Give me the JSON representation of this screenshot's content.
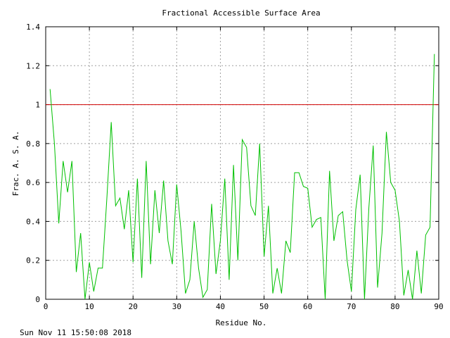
{
  "footer": {
    "timestamp": "Sun Nov 11 15:50:08 2018"
  },
  "chart_data": {
    "type": "line",
    "title": "Fractional Accessible Surface Area",
    "xlabel": "Residue No.",
    "ylabel": "Frac. A. S. A.",
    "xlim": [
      0,
      90
    ],
    "ylim": [
      0,
      1.4
    ],
    "xticks": [
      0,
      10,
      20,
      30,
      40,
      50,
      60,
      70,
      80,
      90
    ],
    "xtick_labels": [
      "0",
      "10",
      "20",
      "30",
      "40",
      "50",
      "60",
      "70",
      "80",
      "90"
    ],
    "yticks": [
      0,
      0.2,
      0.4,
      0.6,
      0.8,
      1,
      1.2,
      1.4
    ],
    "ytick_labels": [
      "0",
      "0.2",
      "0.4",
      "0.6",
      "0.8",
      "1",
      "1.2",
      "1.4"
    ],
    "grid": true,
    "reference_line": {
      "y": 1.0,
      "color": "#d00000"
    },
    "series": [
      {
        "color": "#00c000",
        "x": [
          1,
          2,
          3,
          4,
          5,
          6,
          7,
          8,
          9,
          10,
          11,
          12,
          13,
          14,
          15,
          16,
          17,
          18,
          19,
          20,
          21,
          22,
          23,
          24,
          25,
          26,
          27,
          28,
          29,
          30,
          31,
          32,
          33,
          34,
          35,
          36,
          37,
          38,
          39,
          40,
          41,
          42,
          43,
          44,
          45,
          46,
          47,
          48,
          49,
          50,
          51,
          52,
          53,
          54,
          55,
          56,
          57,
          58,
          59,
          60,
          61,
          62,
          63,
          64,
          65,
          66,
          67,
          68,
          69,
          70,
          71,
          72,
          73,
          74,
          75,
          76,
          77,
          78,
          79,
          80,
          81,
          82,
          83,
          84,
          85,
          86,
          87,
          88,
          89
        ],
        "y": [
          1.08,
          0.8,
          0.39,
          0.71,
          0.55,
          0.71,
          0.14,
          0.34,
          0.0,
          0.19,
          0.04,
          0.16,
          0.16,
          0.52,
          0.91,
          0.48,
          0.52,
          0.36,
          0.56,
          0.19,
          0.62,
          0.11,
          0.71,
          0.18,
          0.56,
          0.34,
          0.61,
          0.3,
          0.18,
          0.59,
          0.35,
          0.03,
          0.1,
          0.4,
          0.16,
          0.01,
          0.05,
          0.49,
          0.13,
          0.3,
          0.62,
          0.1,
          0.69,
          0.2,
          0.82,
          0.78,
          0.48,
          0.43,
          0.8,
          0.22,
          0.48,
          0.03,
          0.16,
          0.03,
          0.3,
          0.24,
          0.65,
          0.65,
          0.58,
          0.57,
          0.37,
          0.41,
          0.42,
          0.0,
          0.66,
          0.3,
          0.43,
          0.45,
          0.2,
          0.04,
          0.46,
          0.64,
          0.0,
          0.47,
          0.79,
          0.06,
          0.34,
          0.86,
          0.6,
          0.56,
          0.4,
          0.02,
          0.15,
          0.0,
          0.25,
          0.03,
          0.33,
          0.37,
          1.26
        ]
      }
    ]
  }
}
